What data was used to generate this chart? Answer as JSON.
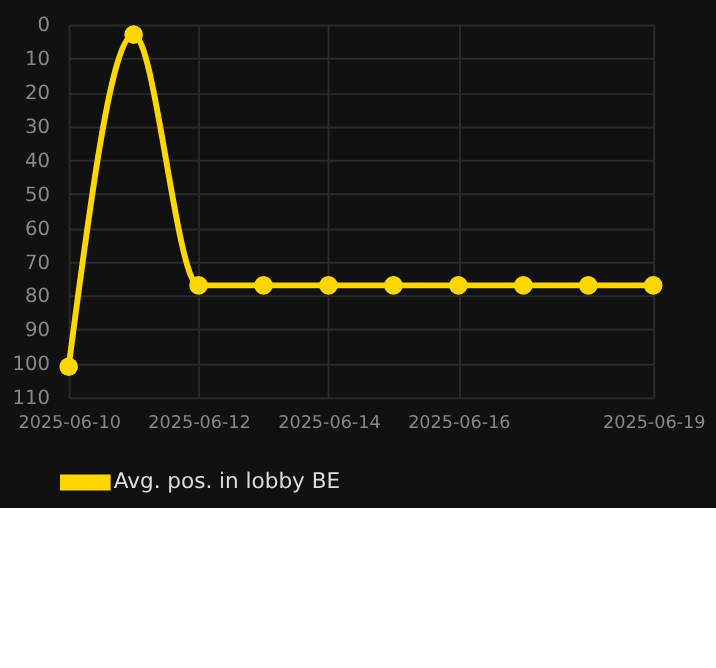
{
  "chart_data": {
    "type": "line",
    "x": [
      "2025-06-10",
      "2025-06-11",
      "2025-06-12",
      "2025-06-13",
      "2025-06-14",
      "2025-06-15",
      "2025-06-16",
      "2025-06-17",
      "2025-06-18",
      "2025-06-19"
    ],
    "series": [
      {
        "name": "Avg. pos. in lobby BE",
        "color": "#ffd700",
        "values": [
          101,
          3,
          77,
          77,
          77,
          77,
          77,
          77,
          77,
          77
        ]
      }
    ],
    "ylim": [
      110,
      0
    ],
    "yticks": [
      0,
      10,
      20,
      30,
      40,
      50,
      60,
      70,
      80,
      90,
      100,
      110
    ],
    "xlim": [
      "2025-06-10",
      "2025-06-19"
    ],
    "xticks": [
      "2025-06-10",
      "2025-06-12",
      "2025-06-14",
      "2025-06-16",
      "2025-06-19"
    ],
    "grid": true,
    "legend": "bottom",
    "marker": "circle",
    "line_style": "solid"
  }
}
